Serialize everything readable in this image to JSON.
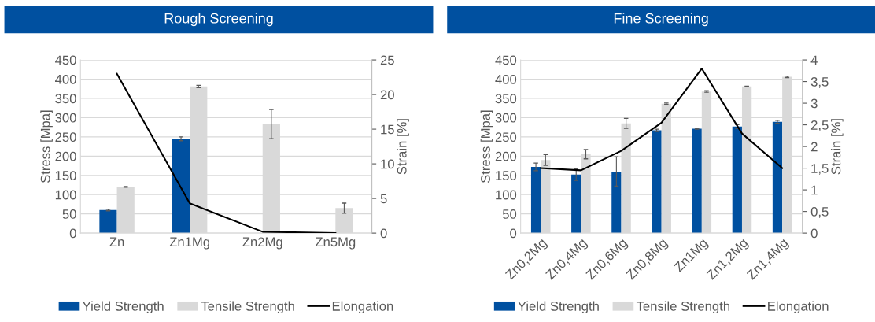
{
  "chart_data": [
    {
      "type": "bar",
      "title": "Rough Screening",
      "ylabel": "Stress [Mpa]",
      "y2label": "Strain [%]",
      "categories": [
        "Zn",
        "Zn1Mg",
        "Zn2Mg",
        "Zn5Mg"
      ],
      "series": [
        {
          "name": "Yield Strength",
          "color": "#0050a0",
          "values": [
            60,
            245,
            null,
            null
          ],
          "errors": [
            2,
            5,
            null,
            null
          ]
        },
        {
          "name": "Tensile Strength",
          "color": "#d9d9d9",
          "values": [
            120,
            381,
            283,
            65
          ],
          "errors": [
            1,
            3,
            38,
            13
          ]
        },
        {
          "name": "Elongation",
          "type": "line",
          "axis": "y2",
          "color": "#000000",
          "values": [
            23,
            4.3,
            0.2,
            0
          ]
        }
      ],
      "ylim": [
        0,
        450
      ],
      "yticks": [
        0,
        50,
        100,
        150,
        200,
        250,
        300,
        350,
        400,
        450
      ],
      "y2lim": [
        0,
        25
      ],
      "y2ticks": [
        0,
        5,
        10,
        15,
        20,
        25
      ],
      "grid": "y",
      "legend": "bottom",
      "marker": "none",
      "line_style": "solid"
    },
    {
      "type": "bar",
      "title": "Fine Screening",
      "ylabel": "Stress [Mpa]",
      "y2label": "Strain [%]",
      "categories": [
        "Zn0,2Mg",
        "Zn0,4Mg",
        "Zn0,6Mg",
        "Zn0,8Mg",
        "Zn1Mg",
        "Zn1,2Mg",
        "Zn1,4Mg"
      ],
      "series": [
        {
          "name": "Yield Strength",
          "color": "#0050a0",
          "values": [
            172,
            152,
            160,
            267,
            271,
            277,
            289
          ],
          "errors": [
            10,
            15,
            38,
            3,
            1,
            5,
            4
          ]
        },
        {
          "name": "Tensile Strength",
          "color": "#d9d9d9",
          "values": [
            190,
            205,
            285,
            336,
            368,
            381,
            406
          ],
          "errors": [
            14,
            12,
            13,
            2,
            2,
            1,
            2
          ]
        },
        {
          "name": "Elongation",
          "type": "line",
          "axis": "y2",
          "color": "#000000",
          "values": [
            1.5,
            1.45,
            1.9,
            2.55,
            3.8,
            2.3,
            1.5
          ]
        }
      ],
      "ylim": [
        0,
        450
      ],
      "yticks": [
        0,
        50,
        100,
        150,
        200,
        250,
        300,
        350,
        400,
        450
      ],
      "y2lim": [
        0,
        4
      ],
      "y2ticks": [
        0,
        {
          "value": 0.5,
          "label": "0,5"
        },
        1,
        {
          "value": 1.5,
          "label": "1,5"
        },
        2,
        {
          "value": 2.5,
          "label": "2,5"
        },
        3,
        {
          "value": 3.5,
          "label": "3,5"
        },
        4
      ],
      "grid": "y",
      "legend": "bottom",
      "marker": "none",
      "line_style": "solid"
    }
  ]
}
